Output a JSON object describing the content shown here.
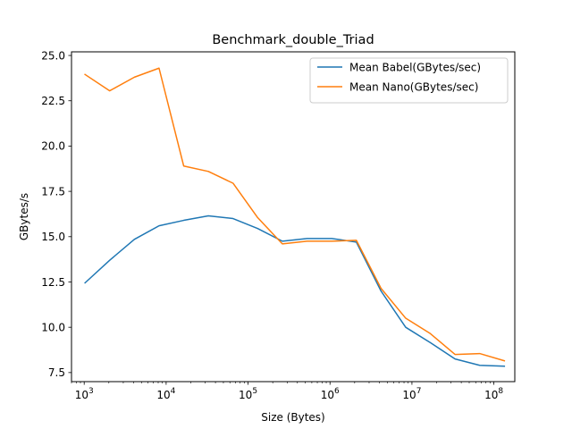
{
  "chart_data": {
    "type": "line",
    "title": "Benchmark_double_Triad",
    "xlabel": "Size (Bytes)",
    "ylabel": "GBytes/s",
    "xscale": "log",
    "xlim": [
      700,
      180000000
    ],
    "ylim": [
      7.0,
      25.2
    ],
    "x": [
      1024,
      2048,
      4096,
      8192,
      16384,
      32768,
      65536,
      131072,
      262144,
      524288,
      1048576,
      2097152,
      4194304,
      8388608,
      16777216,
      33554432,
      67108864,
      134217728
    ],
    "x_ticks": [
      {
        "value": 1000,
        "label_base": "10",
        "label_exp": "3"
      },
      {
        "value": 10000,
        "label_base": "10",
        "label_exp": "4"
      },
      {
        "value": 100000,
        "label_base": "10",
        "label_exp": "5"
      },
      {
        "value": 1000000,
        "label_base": "10",
        "label_exp": "6"
      },
      {
        "value": 10000000,
        "label_base": "10",
        "label_exp": "7"
      },
      {
        "value": 100000000,
        "label_base": "10",
        "label_exp": "8"
      }
    ],
    "y_ticks": [
      7.5,
      10.0,
      12.5,
      15.0,
      17.5,
      20.0,
      22.5,
      25.0
    ],
    "y_tick_labels": [
      "7.5",
      "10.0",
      "12.5",
      "15.0",
      "17.5",
      "20.0",
      "22.5",
      "25.0"
    ],
    "series": [
      {
        "name": "Mean Babel(GBytes/sec)",
        "color": "#1f77b4",
        "values": [
          12.45,
          13.7,
          14.85,
          15.6,
          15.9,
          16.15,
          16.0,
          15.45,
          14.75,
          14.9,
          14.9,
          14.7,
          12.0,
          10.0,
          9.15,
          8.25,
          7.9,
          7.85
        ]
      },
      {
        "name": "Mean Nano(GBytes/sec)",
        "color": "#ff7f0e",
        "values": [
          23.95,
          23.05,
          23.8,
          24.3,
          18.9,
          18.6,
          17.95,
          16.05,
          14.6,
          14.75,
          14.75,
          14.8,
          12.15,
          10.5,
          9.65,
          8.5,
          8.55,
          8.15
        ]
      }
    ],
    "legend_position": "top-right",
    "grid": false
  }
}
